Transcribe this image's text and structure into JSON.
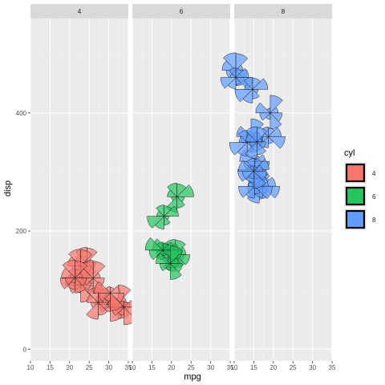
{
  "chart_data": {
    "type": "scatter",
    "mark": "star-wedge-glyphs",
    "facet_by": "cyl",
    "facets": [
      "4",
      "6",
      "8"
    ],
    "xlabel": "mpg",
    "ylabel": "disp",
    "xlim": [
      10,
      35
    ],
    "ylim": [
      -20,
      560
    ],
    "x_ticks": [
      10,
      15,
      20,
      25,
      30,
      35
    ],
    "y_ticks": [
      0,
      200,
      400
    ],
    "grid": true,
    "legend": {
      "title": "cyl",
      "position": "right",
      "entries": [
        {
          "label": "4",
          "color": "#F8766D"
        },
        {
          "label": "6",
          "color": "#22C55E"
        },
        {
          "label": "8",
          "color": "#619CFF"
        }
      ]
    },
    "series": [
      {
        "cyl": "4",
        "color": "#F8766D",
        "points": [
          {
            "x": 22.8,
            "y": 108
          },
          {
            "x": 24.4,
            "y": 146.7
          },
          {
            "x": 22.8,
            "y": 140.8
          },
          {
            "x": 32.4,
            "y": 78.7
          },
          {
            "x": 30.4,
            "y": 75.7
          },
          {
            "x": 33.9,
            "y": 71.1
          },
          {
            "x": 21.5,
            "y": 120.1
          },
          {
            "x": 27.3,
            "y": 79
          },
          {
            "x": 26,
            "y": 120.3
          },
          {
            "x": 30.4,
            "y": 95.1
          },
          {
            "x": 21.4,
            "y": 121
          }
        ]
      },
      {
        "cyl": "6",
        "color": "#22C55E",
        "points": [
          {
            "x": 21,
            "y": 160
          },
          {
            "x": 21,
            "y": 160
          },
          {
            "x": 21.4,
            "y": 258
          },
          {
            "x": 18.1,
            "y": 225
          },
          {
            "x": 19.2,
            "y": 167.6
          },
          {
            "x": 17.8,
            "y": 167.6
          },
          {
            "x": 19.7,
            "y": 145
          }
        ]
      },
      {
        "cyl": "8",
        "color": "#619CFF",
        "points": [
          {
            "x": 18.7,
            "y": 360
          },
          {
            "x": 14.3,
            "y": 360
          },
          {
            "x": 16.4,
            "y": 275.8
          },
          {
            "x": 17.3,
            "y": 275.8
          },
          {
            "x": 15.2,
            "y": 275.8
          },
          {
            "x": 10.4,
            "y": 472
          },
          {
            "x": 10.4,
            "y": 460
          },
          {
            "x": 14.7,
            "y": 440
          },
          {
            "x": 15.5,
            "y": 318
          },
          {
            "x": 15.2,
            "y": 304
          },
          {
            "x": 13.3,
            "y": 350
          },
          {
            "x": 19.2,
            "y": 400
          },
          {
            "x": 15.8,
            "y": 351
          },
          {
            "x": 15,
            "y": 301
          }
        ]
      }
    ]
  }
}
